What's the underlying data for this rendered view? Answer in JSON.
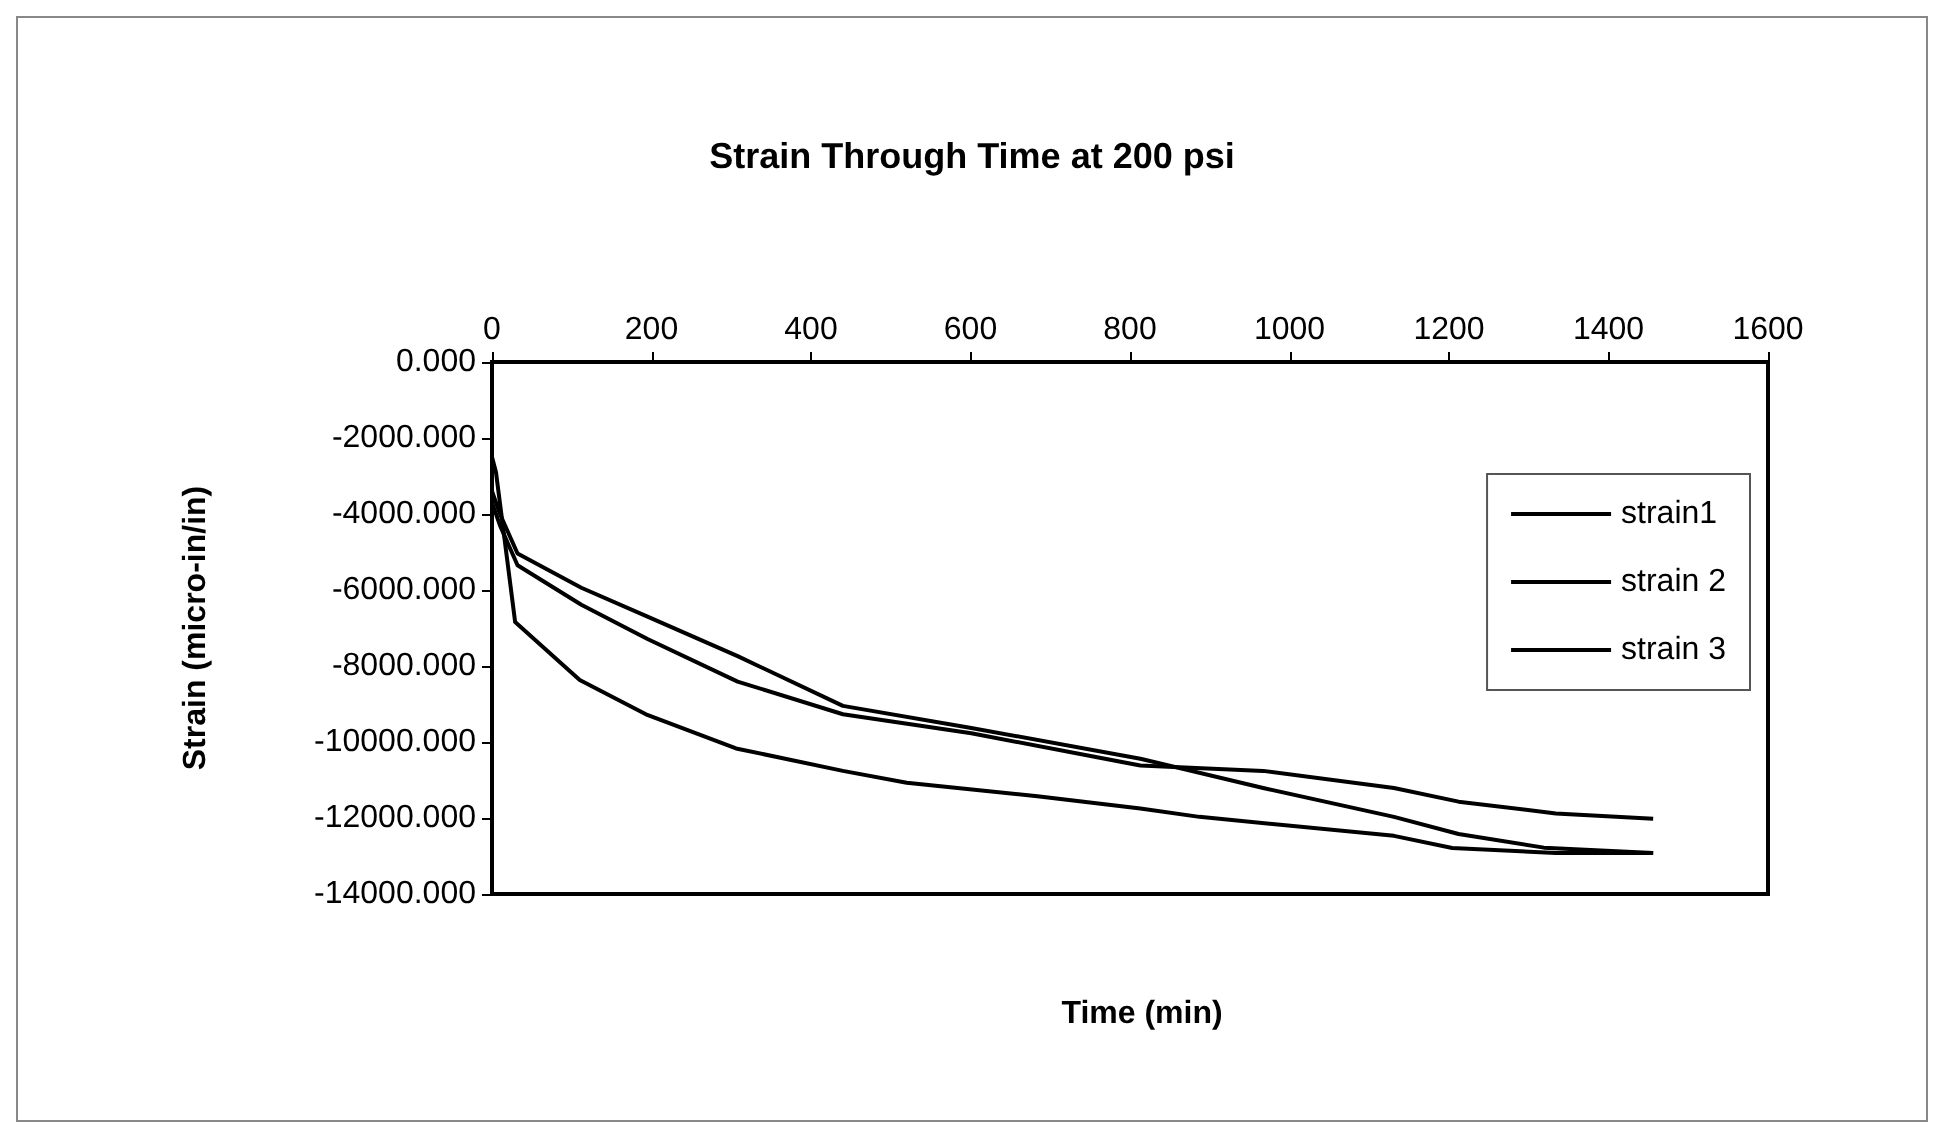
{
  "chart_data": {
    "type": "line",
    "title": "Strain Through Time at 200 psi",
    "xlabel": "Time (min)",
    "ylabel": "Strain (micro-in/in)",
    "xlim": [
      0,
      1600
    ],
    "xticks": [
      0,
      200,
      400,
      600,
      800,
      1000,
      1200,
      1400,
      1600
    ],
    "ylim": [
      -14000,
      0
    ],
    "yticks": [
      {
        "value": 0,
        "label": "0.000"
      },
      {
        "value": -2000,
        "label": "-2000.000"
      },
      {
        "value": -4000,
        "label": "-4000.000"
      },
      {
        "value": -6000,
        "label": "-6000.000"
      },
      {
        "value": -8000,
        "label": "-8000.000"
      },
      {
        "value": -10000,
        "label": "-10000.000"
      },
      {
        "value": -12000,
        "label": "-12000.000"
      },
      {
        "value": -14000,
        "label": "-14000.000"
      }
    ],
    "grid": false,
    "legend": "right",
    "marker": "none",
    "line_style": "solid",
    "series": [
      {
        "name": "strain1",
        "color": "#000000",
        "x": [
          0,
          5,
          29,
          110,
          193,
          306,
          440,
          520,
          684,
          813,
          887,
          1131,
          1204,
          1334,
          1456
        ],
        "values": [
          -2500,
          -2900,
          -6840,
          -8370,
          -9270,
          -10170,
          -10760,
          -11070,
          -11430,
          -11750,
          -11970,
          -12470,
          -12790,
          -12920,
          -12920
        ]
      },
      {
        "name": "strain 2",
        "color": "#000000",
        "x": [
          0,
          10,
          32,
          112,
          195,
          308,
          440,
          601,
          813,
          967,
          1131,
          1212,
          1334,
          1456
        ],
        "values": [
          -3700,
          -4300,
          -5350,
          -6390,
          -7290,
          -8410,
          -9270,
          -9770,
          -10620,
          -10760,
          -11210,
          -11570,
          -11880,
          -12020
        ]
      },
      {
        "name": "strain 3",
        "color": "#000000",
        "x": [
          0,
          10,
          32,
          112,
          195,
          308,
          440,
          601,
          813,
          967,
          1131,
          1212,
          1319,
          1456
        ],
        "values": [
          -3400,
          -4000,
          -5040,
          -5940,
          -6700,
          -7740,
          -9050,
          -9630,
          -10440,
          -11210,
          -11970,
          -12420,
          -12780,
          -12920
        ]
      }
    ]
  }
}
